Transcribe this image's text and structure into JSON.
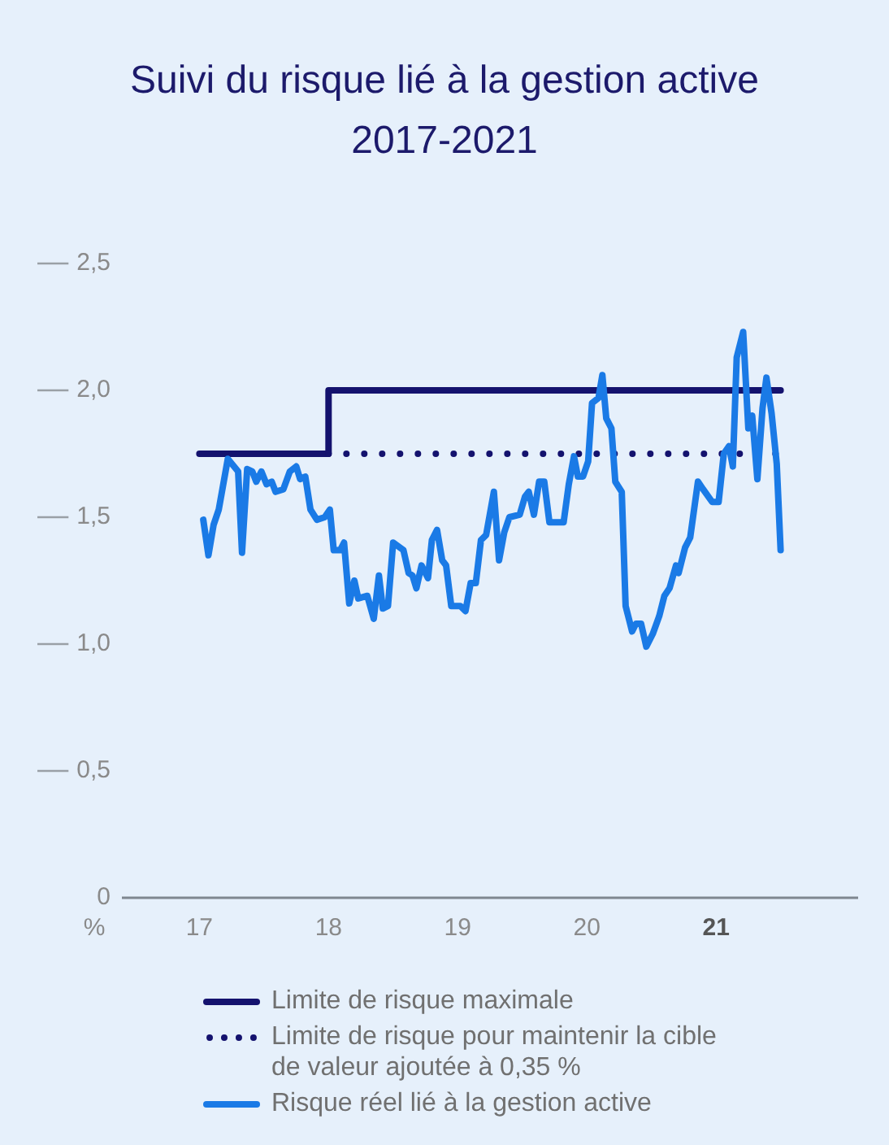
{
  "chart_data": {
    "type": "line",
    "title": "Suivi du risque lié à la gestion active 2017-2021",
    "ylabel": "%",
    "xlim": [
      2016.4,
      2022.1
    ],
    "xticks": [
      {
        "value": 2017,
        "label": "17"
      },
      {
        "value": 2018,
        "label": "18"
      },
      {
        "value": 2019,
        "label": "19"
      },
      {
        "value": 2020,
        "label": "20"
      },
      {
        "value": 2021,
        "label": "21"
      }
    ],
    "ylim": [
      0,
      2.5
    ],
    "yticks": [
      0,
      {
        "value": 0.5,
        "label": "0,5"
      },
      {
        "value": 1,
        "label": "1,0"
      },
      {
        "value": 1.5,
        "label": "1,5"
      },
      {
        "value": 2,
        "label": "2,0"
      },
      {
        "value": 2.5,
        "label": "2,5"
      }
    ],
    "legend": "bottom",
    "series": [
      {
        "name": "Limite de risque maximale",
        "type": "step",
        "color": "#14126e",
        "line_style": "solid",
        "x": [
          2017,
          2018,
          2021.5
        ],
        "values": [
          1.75,
          2.0,
          2.0
        ]
      },
      {
        "name": "Limite de risque pour maintenir la cible de valeur ajoutée à 0,35 %",
        "type": "line",
        "color": "#14126e",
        "line_style": "dotted",
        "x": [
          2018,
          2021.5
        ],
        "values": [
          1.75,
          1.75
        ]
      },
      {
        "name": "Risque réel lié à la gestion active",
        "type": "line",
        "color": "#1a7ae6",
        "line_style": "solid",
        "x": [
          2017.03,
          2017.07,
          2017.11,
          2017.15,
          2017.22,
          2017.3,
          2017.33,
          2017.37,
          2017.41,
          2017.44,
          2017.48,
          2017.52,
          2017.56,
          2017.59,
          2017.65,
          2017.7,
          2017.75,
          2017.78,
          2017.82,
          2017.86,
          2017.91,
          2017.97,
          2018.01,
          2018.04,
          2018.09,
          2018.12,
          2018.16,
          2018.2,
          2018.23,
          2018.3,
          2018.35,
          2018.39,
          2018.42,
          2018.46,
          2018.5,
          2018.58,
          2018.62,
          2018.65,
          2018.68,
          2018.72,
          2018.77,
          2018.8,
          2018.84,
          2018.88,
          2018.91,
          2018.95,
          2019.02,
          2019.06,
          2019.1,
          2019.14,
          2019.18,
          2019.22,
          2019.28,
          2019.32,
          2019.36,
          2019.4,
          2019.48,
          2019.52,
          2019.55,
          2019.59,
          2019.63,
          2019.67,
          2019.71,
          2019.82,
          2019.86,
          2019.9,
          2019.93,
          2019.97,
          2020.01,
          2020.04,
          2020.09,
          2020.12,
          2020.15,
          2020.19,
          2020.22,
          2020.27,
          2020.3,
          2020.35,
          2020.38,
          2020.42,
          2020.46,
          2020.51,
          2020.56,
          2020.6,
          2020.64,
          2020.69,
          2020.71,
          2020.76,
          2020.8,
          2020.86,
          2020.9,
          2020.97,
          2021.02,
          2021.06,
          2021.1,
          2021.13,
          2021.16,
          2021.21,
          2021.25,
          2021.28,
          2021.32,
          2021.36,
          2021.39,
          2021.43,
          2021.47,
          2021.5
        ],
        "values": [
          1.49,
          1.35,
          1.47,
          1.53,
          1.73,
          1.68,
          1.36,
          1.69,
          1.68,
          1.64,
          1.68,
          1.63,
          1.64,
          1.6,
          1.61,
          1.68,
          1.7,
          1.65,
          1.66,
          1.53,
          1.49,
          1.5,
          1.53,
          1.37,
          1.37,
          1.4,
          1.16,
          1.25,
          1.18,
          1.19,
          1.1,
          1.27,
          1.14,
          1.15,
          1.4,
          1.37,
          1.28,
          1.27,
          1.22,
          1.31,
          1.26,
          1.41,
          1.45,
          1.33,
          1.31,
          1.15,
          1.15,
          1.13,
          1.24,
          1.24,
          1.41,
          1.43,
          1.6,
          1.33,
          1.44,
          1.5,
          1.51,
          1.58,
          1.6,
          1.51,
          1.64,
          1.64,
          1.48,
          1.48,
          1.63,
          1.74,
          1.66,
          1.66,
          1.72,
          1.95,
          1.97,
          2.06,
          1.89,
          1.85,
          1.64,
          1.6,
          1.15,
          1.05,
          1.08,
          1.08,
          0.99,
          1.04,
          1.11,
          1.19,
          1.22,
          1.31,
          1.28,
          1.38,
          1.42,
          1.64,
          1.61,
          1.56,
          1.56,
          1.75,
          1.78,
          1.7,
          2.13,
          2.23,
          1.85,
          1.9,
          1.65,
          1.93,
          2.05,
          1.91,
          1.71,
          1.37
        ]
      }
    ]
  }
}
